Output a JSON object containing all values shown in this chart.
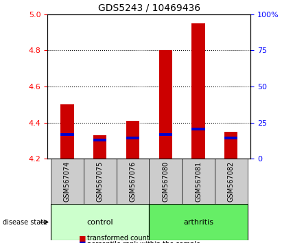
{
  "title": "GDS5243 / 10469436",
  "samples": [
    "GSM567074",
    "GSM567075",
    "GSM567076",
    "GSM567080",
    "GSM567081",
    "GSM567082"
  ],
  "groups": [
    "control",
    "control",
    "control",
    "arthritis",
    "arthritis",
    "arthritis"
  ],
  "red_values": [
    4.5,
    4.33,
    4.41,
    4.8,
    4.95,
    4.35
  ],
  "blue_values": [
    4.335,
    4.305,
    4.315,
    4.335,
    4.365,
    4.315
  ],
  "ylim_left": [
    4.2,
    5.0
  ],
  "ylim_right": [
    0,
    100
  ],
  "yticks_left": [
    4.2,
    4.4,
    4.6,
    4.8,
    5.0
  ],
  "yticks_right": [
    0,
    25,
    50,
    75,
    100
  ],
  "ytick_labels_right": [
    "0",
    "25",
    "50",
    "75",
    "100%"
  ],
  "bar_width": 0.4,
  "control_color_light": "#ccffcc",
  "control_color_dark": "#99ee99",
  "arthritis_color_light": "#66ee66",
  "arthritis_color_dark": "#33cc33",
  "sample_area_color": "#cccccc",
  "red_color": "#cc0000",
  "blue_color": "#0000cc",
  "grid_color": "#000000",
  "base_value": 4.2
}
